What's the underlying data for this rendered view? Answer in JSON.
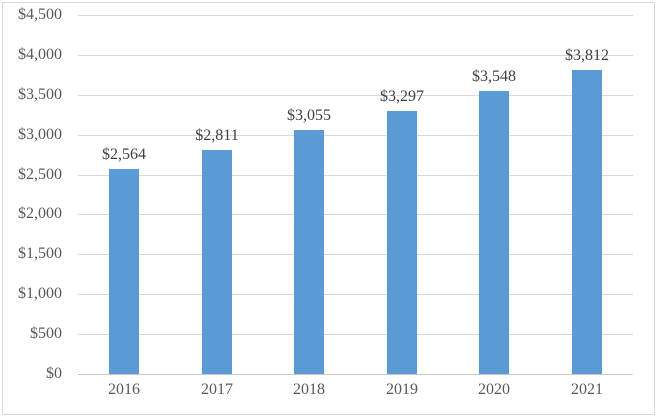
{
  "chart_data": {
    "type": "bar",
    "title": "",
    "xlabel": "",
    "ylabel": "",
    "categories": [
      "2016",
      "2017",
      "2018",
      "2019",
      "2020",
      "2021"
    ],
    "values": [
      2564,
      2811,
      3055,
      3297,
      3548,
      3812
    ],
    "bar_labels": [
      "$2,564",
      "$2,811",
      "$3,055",
      "$3,297",
      "$3,548",
      "$3,812"
    ],
    "y_ticks": [
      0,
      500,
      1000,
      1500,
      2000,
      2500,
      3000,
      3500,
      4000,
      4500
    ],
    "y_tick_labels": [
      "$0",
      "$500",
      "$1,000",
      "$1,500",
      "$2,000",
      "$2,500",
      "$3,000",
      "$3,500",
      "$4,000",
      "$4,500"
    ],
    "ylim": [
      0,
      4500
    ],
    "grid": true,
    "legend": "none",
    "colors": {
      "bar": "#5B9BD5",
      "gridline": "#D9D9D9",
      "axis_line": "#C9C9C9",
      "tick_label": "#595959",
      "data_label": "#404040",
      "background": "#FFFFFF",
      "border": "#D9D9D9"
    }
  }
}
